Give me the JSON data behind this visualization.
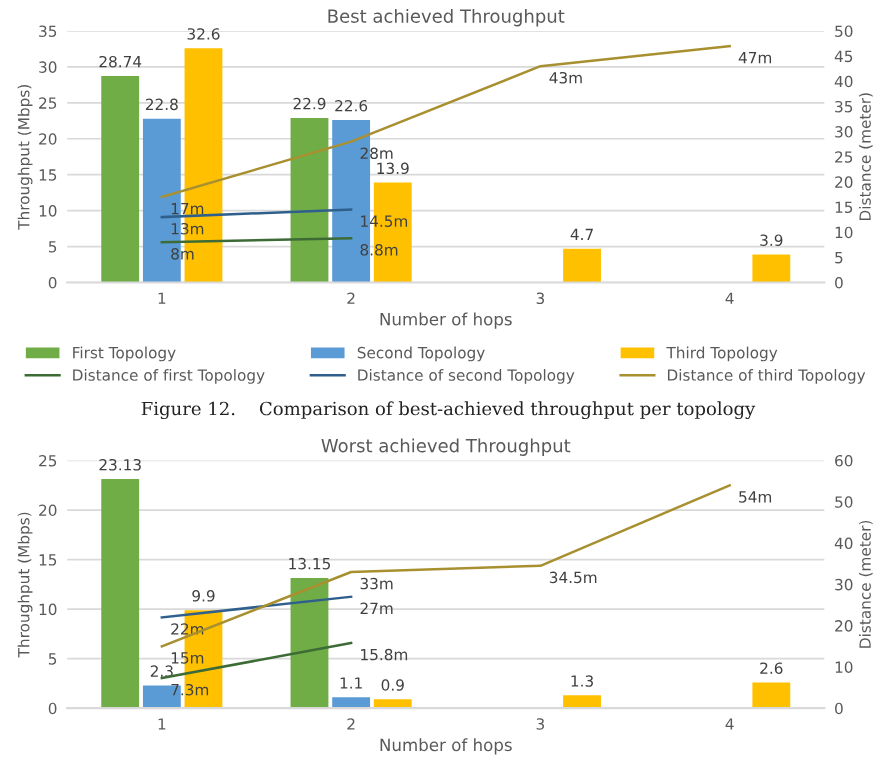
{
  "chart_data": [
    {
      "type": "bar",
      "title": "Best achieved Throughput",
      "xlabel": "Number of hops",
      "ylabel": "Throughput (Mbps)",
      "y2label": "Distance (meter)",
      "categories": [
        "1",
        "2",
        "3",
        "4"
      ],
      "series": [
        {
          "name": "First Topology",
          "color": "#70ad47",
          "values": [
            28.74,
            22.9,
            null,
            null
          ]
        },
        {
          "name": "Second Topology",
          "color": "#5b9bd5",
          "values": [
            22.8,
            22.6,
            null,
            null
          ]
        },
        {
          "name": "Third Topology",
          "color": "#ffc000",
          "values": [
            32.6,
            13.9,
            4.7,
            3.9
          ]
        },
        {
          "name": "Distance of first Topology",
          "type": "line",
          "axis": "y2",
          "color": "#3d6b35",
          "values": [
            8,
            8.8,
            null,
            null
          ],
          "value_labels": [
            "8m",
            "8.8m",
            null,
            null
          ]
        },
        {
          "name": "Distance of second Topology",
          "type": "line",
          "axis": "y2",
          "color": "#2f5f8c",
          "values": [
            13,
            14.5,
            null,
            null
          ],
          "value_labels": [
            "13m",
            "14.5m",
            null,
            null
          ]
        },
        {
          "name": "Distance of third Topology",
          "type": "line",
          "axis": "y2",
          "color": "#a89030",
          "values": [
            17,
            28,
            43,
            47
          ],
          "value_labels": [
            "17m",
            "28m",
            "43m",
            "47m"
          ]
        }
      ],
      "ylim": [
        0,
        35
      ],
      "yticks": [
        0,
        5,
        10,
        15,
        20,
        25,
        30,
        35
      ],
      "y2lim": [
        0,
        50
      ],
      "y2ticks": [
        0,
        5,
        10,
        15,
        20,
        25,
        30,
        35,
        40,
        45,
        50
      ],
      "grid": "y",
      "legend": "bottom",
      "data_labels": true,
      "annotations": [
        "Figure 12.    Comparison of best-achieved throughput per topology"
      ]
    },
    {
      "type": "bar",
      "title": "Worst achieved Throughput",
      "xlabel": "Number of hops",
      "ylabel": "Throughput (Mbps)",
      "y2label": "Distance (meter)",
      "categories": [
        "1",
        "2",
        "3",
        "4"
      ],
      "series": [
        {
          "color": "#70ad47",
          "values": [
            23.13,
            13.15,
            null,
            null
          ]
        },
        {
          "color": "#5b9bd5",
          "values": [
            2.3,
            1.1,
            null,
            null
          ]
        },
        {
          "color": "#ffc000",
          "values": [
            9.9,
            0.9,
            1.3,
            2.6
          ]
        },
        {
          "type": "line",
          "axis": "y2",
          "color": "#3d6b35",
          "values": [
            7.3,
            15.8,
            null,
            null
          ],
          "value_labels": [
            "7.3m",
            "15.8m",
            null,
            null
          ]
        },
        {
          "type": "line",
          "axis": "y2",
          "color": "#2f5f8c",
          "values": [
            22,
            27,
            null,
            null
          ],
          "value_labels": [
            "22m",
            "27m",
            null,
            null
          ]
        },
        {
          "type": "line",
          "axis": "y2",
          "color": "#a89030",
          "values": [
            15,
            33,
            34.5,
            54
          ],
          "value_labels": [
            "15m",
            "33m",
            "34.5m",
            "54m"
          ]
        }
      ],
      "ylim": [
        0,
        25
      ],
      "yticks": [
        0,
        5,
        10,
        15,
        20,
        25
      ],
      "y2lim": [
        0,
        60
      ],
      "y2ticks": [
        0,
        10,
        20,
        30,
        40,
        50,
        60
      ],
      "grid": "y",
      "data_labels": true
    }
  ]
}
